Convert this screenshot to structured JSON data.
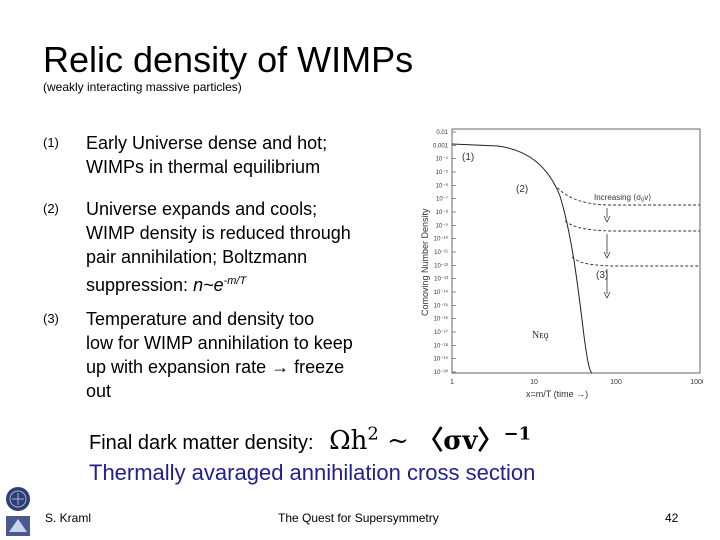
{
  "slide": {
    "title": "Relic density of WIMPs",
    "subtitle": "(weakly interacting massive particles)",
    "items": [
      {
        "num": "(1)",
        "lines": [
          "Early Universe dense and hot;",
          "WIMPs in thermal equilibrium"
        ]
      },
      {
        "num": "(2)",
        "lines": [
          "Universe expands and cools;",
          "WIMP density is reduced through",
          "pair annihilation; Boltzmann",
          "suppression: "
        ],
        "suffix": "n~e",
        "sup": "-m/T"
      },
      {
        "num": "(3)",
        "lines": [
          "Temperature and density too",
          "low for WIMP annihilation to keep",
          "up with expansion rate → freeze",
          "out"
        ]
      }
    ],
    "final_text": "Final dark matter density:",
    "formula": {
      "omega": "Ωh",
      "pow": "2",
      "tilde": "~",
      "open": "〈",
      "sv": "σv",
      "close": "〉",
      "inv": "−1"
    },
    "thermal_text": "Thermally avaraged annihilation cross section",
    "footer": {
      "author": "S. Kraml",
      "center": "The Quest for Supersymmetry",
      "page": "42"
    }
  },
  "figure": {
    "ylabel": "Comoving Number Density",
    "xlabel": "x=m/T  (time →)",
    "y_ticks": [
      "0.01",
      "0.001",
      "10⁻⁴",
      "10⁻⁵",
      "10⁻⁶",
      "10⁻⁷",
      "10⁻⁸",
      "10⁻⁹",
      "10⁻¹⁰",
      "10⁻¹¹",
      "10⁻¹²",
      "10⁻¹³",
      "10⁻¹⁴",
      "10⁻¹⁵",
      "10⁻¹⁶",
      "10⁻¹⁷",
      "10⁻¹⁸",
      "10⁻¹⁹",
      "10⁻²⁰"
    ],
    "x_ticks": [
      "1",
      "10",
      "100",
      "1000"
    ],
    "labels": {
      "one": "(1)",
      "two": "(2)",
      "three": "(3)",
      "increasing": "Increasing ⟨σᵨv⟩",
      "neq": "Nᴇǫ"
    }
  }
}
